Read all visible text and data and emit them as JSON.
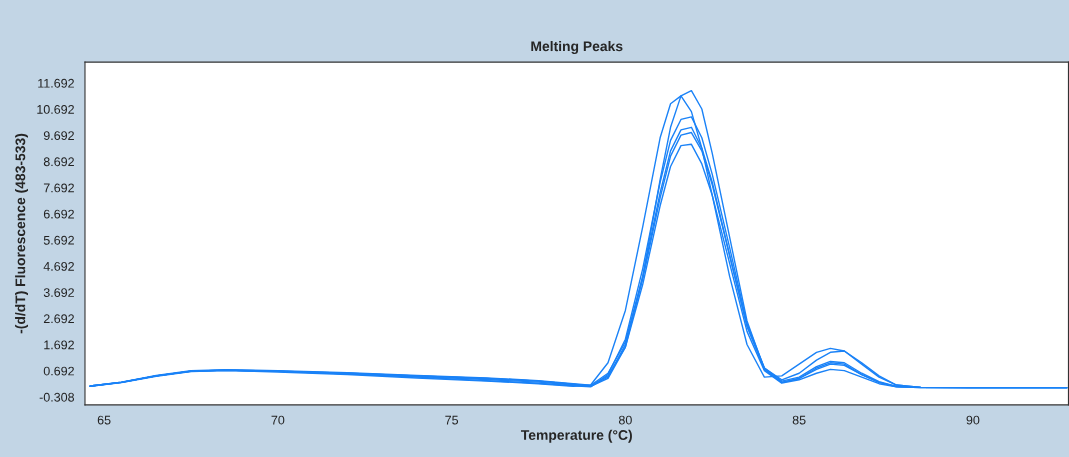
{
  "chart_data": {
    "type": "line",
    "title": "Melting Peaks",
    "xlabel": "Temperature (°C)",
    "ylabel": "-(d/dT) Fluorescence (483-533)",
    "x": [
      64.6,
      65.5,
      66.5,
      67.5,
      68.5,
      70,
      72,
      74,
      76,
      77.5,
      78.5,
      79,
      79.5,
      80,
      80.5,
      81,
      81.3,
      81.6,
      81.9,
      82.2,
      82.5,
      83,
      83.5,
      84,
      84.5,
      85,
      85.5,
      85.9,
      86.3,
      86.8,
      87.3,
      87.8,
      88.5,
      90,
      92.7
    ],
    "series": [
      {
        "color": "#1a82f7",
        "values": [
          0.11,
          0.25,
          0.5,
          0.68,
          0.72,
          0.68,
          0.6,
          0.5,
          0.4,
          0.3,
          0.18,
          0.12,
          0.5,
          1.6,
          4.0,
          7.0,
          8.5,
          9.3,
          9.35,
          8.6,
          7.4,
          4.8,
          2.2,
          0.7,
          0.22,
          0.35,
          0.6,
          0.75,
          0.7,
          0.45,
          0.2,
          0.08,
          0.05,
          0.05,
          0.05
        ]
      },
      {
        "color": "#1a82f7",
        "values": [
          0.11,
          0.26,
          0.52,
          0.7,
          0.74,
          0.7,
          0.62,
          0.52,
          0.42,
          0.32,
          0.2,
          0.14,
          0.6,
          1.8,
          4.3,
          7.5,
          9.1,
          9.9,
          10.0,
          9.2,
          7.9,
          5.1,
          2.4,
          0.75,
          0.25,
          0.4,
          0.75,
          0.95,
          0.9,
          0.55,
          0.25,
          0.1,
          0.06,
          0.05,
          0.05
        ]
      },
      {
        "color": "#1a82f7",
        "values": [
          0.1,
          0.25,
          0.5,
          0.68,
          0.72,
          0.67,
          0.58,
          0.45,
          0.32,
          0.22,
          0.12,
          0.08,
          0.55,
          1.9,
          4.6,
          7.9,
          9.5,
          10.3,
          10.4,
          9.6,
          8.2,
          5.4,
          2.5,
          0.8,
          0.3,
          0.45,
          0.85,
          1.05,
          1.0,
          0.6,
          0.28,
          0.1,
          0.06,
          0.05,
          0.05
        ]
      },
      {
        "color": "#1a82f7",
        "values": [
          0.11,
          0.26,
          0.5,
          0.68,
          0.72,
          0.68,
          0.6,
          0.5,
          0.4,
          0.3,
          0.18,
          0.1,
          0.4,
          1.6,
          4.3,
          8.0,
          10.0,
          11.2,
          11.4,
          10.7,
          9.0,
          5.8,
          2.6,
          0.75,
          0.25,
          0.4,
          0.8,
          1.0,
          0.95,
          0.55,
          0.25,
          0.08,
          0.05,
          0.05,
          0.05
        ]
      },
      {
        "color": "#1a82f7",
        "values": [
          0.1,
          0.24,
          0.48,
          0.66,
          0.7,
          0.65,
          0.55,
          0.42,
          0.3,
          0.2,
          0.1,
          0.15,
          1.0,
          3.0,
          6.2,
          9.6,
          10.9,
          11.2,
          10.6,
          9.2,
          7.4,
          4.3,
          1.7,
          0.45,
          0.5,
          0.95,
          1.4,
          1.55,
          1.45,
          0.95,
          0.45,
          0.15,
          0.06,
          0.05,
          0.05
        ]
      },
      {
        "color": "#1a82f7",
        "values": [
          0.11,
          0.25,
          0.5,
          0.67,
          0.71,
          0.67,
          0.58,
          0.47,
          0.36,
          0.26,
          0.15,
          0.1,
          0.45,
          1.7,
          4.2,
          7.3,
          8.9,
          9.7,
          9.8,
          9.1,
          7.8,
          5.1,
          2.4,
          0.8,
          0.35,
          0.6,
          1.1,
          1.4,
          1.45,
          1.0,
          0.5,
          0.15,
          0.06,
          0.05,
          0.05
        ]
      }
    ],
    "xlim": [
      64.45,
      92.75
    ],
    "xticks": [
      65,
      70,
      75,
      80,
      85,
      90
    ],
    "ylim": [
      -0.61,
      12.49
    ],
    "yticks": [
      -0.308,
      0.692,
      1.692,
      2.692,
      3.692,
      4.692,
      5.692,
      6.692,
      7.692,
      8.692,
      9.692,
      10.692,
      11.692
    ],
    "grid": false,
    "legend": false,
    "marker": "none",
    "line_style": "solid"
  }
}
